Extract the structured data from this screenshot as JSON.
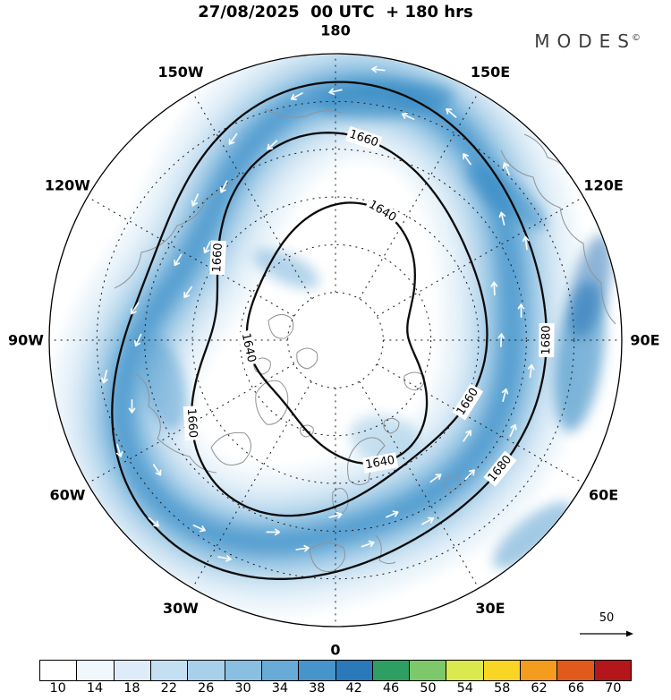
{
  "header": {
    "title": "27/08/2025  00 UTC  + 180 hrs",
    "logo_text": "MODES",
    "logo_mark": "©"
  },
  "chart_data": {
    "type": "heatmap",
    "chart_kind": "north-polar-stereographic-weather-map",
    "title": "27/08/2025 00 UTC + 180 hrs",
    "valid_date": "27/08/2025",
    "valid_time": "00 UTC",
    "lead": "+ 180 hrs",
    "shaded_field_levels": [
      10,
      14,
      18,
      22,
      26,
      30,
      34,
      38,
      42,
      46,
      50,
      54,
      58,
      62,
      66,
      70
    ],
    "longitude_labels": [
      {
        "label": "180",
        "angle": 0
      },
      {
        "label": "150E",
        "angle": 30
      },
      {
        "label": "120E",
        "angle": 60
      },
      {
        "label": "90E",
        "angle": 90
      },
      {
        "label": "60E",
        "angle": 120
      },
      {
        "label": "30E",
        "angle": 150
      },
      {
        "label": "0",
        "angle": 180
      },
      {
        "label": "30W",
        "angle": 210
      },
      {
        "label": "60W",
        "angle": 240
      },
      {
        "label": "90W",
        "angle": 270
      },
      {
        "label": "120W",
        "angle": 300
      },
      {
        "label": "150W",
        "angle": 330
      }
    ],
    "grid": {
      "latitude_circles": 5,
      "meridian_step_deg": 30,
      "style": "dashed"
    },
    "contours": [
      {
        "value": "1640",
        "label_angles": [
          20,
          160,
          265
        ]
      },
      {
        "value": "1660",
        "label_angles": [
          8,
          115,
          240,
          305
        ]
      },
      {
        "value": "1680",
        "label_angles": [
          90,
          128
        ]
      }
    ],
    "colorbar": {
      "tick_labels": [
        "10",
        "14",
        "18",
        "22",
        "26",
        "30",
        "34",
        "38",
        "42",
        "46",
        "50",
        "54",
        "58",
        "62",
        "66",
        "70"
      ],
      "colors": [
        "#ffffff",
        "#f0f7fd",
        "#ddecf8",
        "#c5dff2",
        "#a8d0ea",
        "#89bfe0",
        "#68abd6",
        "#4694c9",
        "#2a79ba",
        "#2f9e63",
        "#7dc86a",
        "#d9e94e",
        "#f9d626",
        "#f39c1d",
        "#e05a1c",
        "#b5161a"
      ]
    },
    "vector_scale": {
      "label": "50"
    },
    "accent_colors": {
      "jet_core": "#2f86c1",
      "band_light": "#ddecf7",
      "contour": "#0b0b0b",
      "coastline": "#8f9398"
    }
  }
}
